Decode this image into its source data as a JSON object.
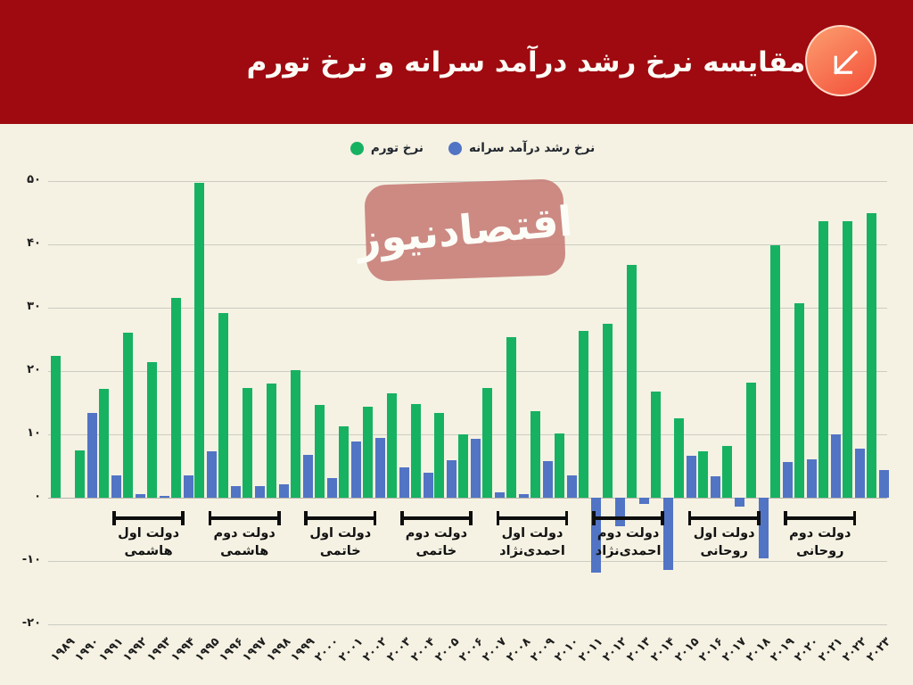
{
  "header": {
    "title": "مقایسه نرخ رشد درآمد سرانه و نرخ تورم",
    "background_color": "#9e0a0f",
    "icon": "arrow-down-left-icon",
    "icon_color": "#f4563e"
  },
  "legend": {
    "items": [
      {
        "label": "نرخ تورم",
        "color": "#16b262"
      },
      {
        "label": "نرخ رشد درآمد سرانه",
        "color": "#5274c4"
      }
    ]
  },
  "watermark": {
    "text": "اقتصادنیوز",
    "background_color": "#c67b75",
    "text_color": "#ffffff"
  },
  "chart_data": {
    "type": "bar",
    "title": "مقایسه نرخ رشد درآمد سرانه و نرخ تورم",
    "x": [
      1989,
      1990,
      1991,
      1992,
      1993,
      1994,
      1995,
      1996,
      1997,
      1998,
      1999,
      2000,
      2001,
      2002,
      2003,
      2004,
      2005,
      2006,
      2007,
      2008,
      2009,
      2010,
      2011,
      2012,
      2013,
      2014,
      2015,
      2016,
      2017,
      2018,
      2019,
      2020,
      2021,
      2022,
      2023
    ],
    "x_labels": [
      "۱۹۸۹",
      "۱۹۹۰",
      "۱۹۹۱",
      "۱۹۹۲",
      "۱۹۹۳",
      "۱۹۹۴",
      "۱۹۹۵",
      "۱۹۹۶",
      "۱۹۹۷",
      "۱۹۹۸",
      "۱۹۹۹",
      "۲۰۰۰",
      "۲۰۰۱",
      "۲۰۰۲",
      "۲۰۰۳",
      "۲۰۰۴",
      "۲۰۰۵",
      "۲۰۰۶",
      "۲۰۰۷",
      "۲۰۰۸",
      "۲۰۰۹",
      "۲۰۱۰",
      "۲۰۱۱",
      "۲۰۱۲",
      "۲۰۱۳",
      "۲۰۱۴",
      "۲۰۱۵",
      "۲۰۱۶",
      "۲۰۱۷",
      "۲۰۱۸",
      "۲۰۱۹",
      "۲۰۲۰",
      "۲۰۲۱",
      "۲۰۲۲",
      "۲۰۲۳"
    ],
    "series": [
      {
        "key": "inflation",
        "name": "نرخ تورم",
        "color": "#16b262",
        "values": [
          22.4,
          7.5,
          17.2,
          26.1,
          21.4,
          31.6,
          49.7,
          29.1,
          17.3,
          18.0,
          20.2,
          14.6,
          11.3,
          14.3,
          16.5,
          14.8,
          13.4,
          10.0,
          17.3,
          25.4,
          13.7,
          10.2,
          26.3,
          27.5,
          36.7,
          16.7,
          12.5,
          7.3,
          8.1,
          18.2,
          39.8,
          30.7,
          43.6,
          43.7,
          44.9
        ]
      },
      {
        "key": "income-growth",
        "name": "نرخ رشد درآمد سرانه",
        "color": "#5274c4",
        "values": [
          0,
          13.4,
          3.5,
          0.6,
          0.3,
          3.5,
          7.3,
          1.9,
          1.8,
          2.1,
          6.7,
          3.1,
          8.9,
          9.5,
          4.8,
          4.0,
          5.9,
          9.3,
          0.9,
          0.5,
          5.8,
          3.5,
          -11.8,
          -4.5,
          -1.0,
          -11.4,
          6.6,
          3.4,
          -1.4,
          -9.6,
          5.6,
          6.0,
          10.0,
          7.7,
          4.4
        ]
      }
    ],
    "ylim": [
      -20,
      50
    ],
    "yticks": [
      {
        "value": 50,
        "label": "۵۰"
      },
      {
        "value": 40,
        "label": "۴۰"
      },
      {
        "value": 30,
        "label": "۳۰"
      },
      {
        "value": 20,
        "label": "۲۰"
      },
      {
        "value": 10,
        "label": "۱۰"
      },
      {
        "value": 0,
        "label": "۰"
      },
      {
        "value": -10,
        "label": "-۱۰"
      },
      {
        "value": -20,
        "label": "-۲۰"
      }
    ],
    "grid": true,
    "legend_position": "top-center",
    "government_periods": [
      {
        "line1": "دولت اول",
        "line2": "هاشمی",
        "from": 1991.5,
        "to": 1994.5
      },
      {
        "line1": "دولت دوم",
        "line2": "هاشمی",
        "from": 1995.5,
        "to": 1998.5
      },
      {
        "line1": "دولت اول",
        "line2": "خاتمی",
        "from": 1999.5,
        "to": 2002.5
      },
      {
        "line1": "دولت دوم",
        "line2": "خاتمی",
        "from": 2003.5,
        "to": 2006.5
      },
      {
        "line1": "دولت اول",
        "line2": "احمدی‌نژاد",
        "from": 2007.5,
        "to": 2010.5
      },
      {
        "line1": "دولت دوم",
        "line2": "احمدی‌نژاد",
        "from": 2011.5,
        "to": 2014.5
      },
      {
        "line1": "دولت اول",
        "line2": "روحانی",
        "from": 2015.5,
        "to": 2018.5
      },
      {
        "line1": "دولت دوم",
        "line2": "روحانی",
        "from": 2019.5,
        "to": 2022.5
      }
    ]
  }
}
